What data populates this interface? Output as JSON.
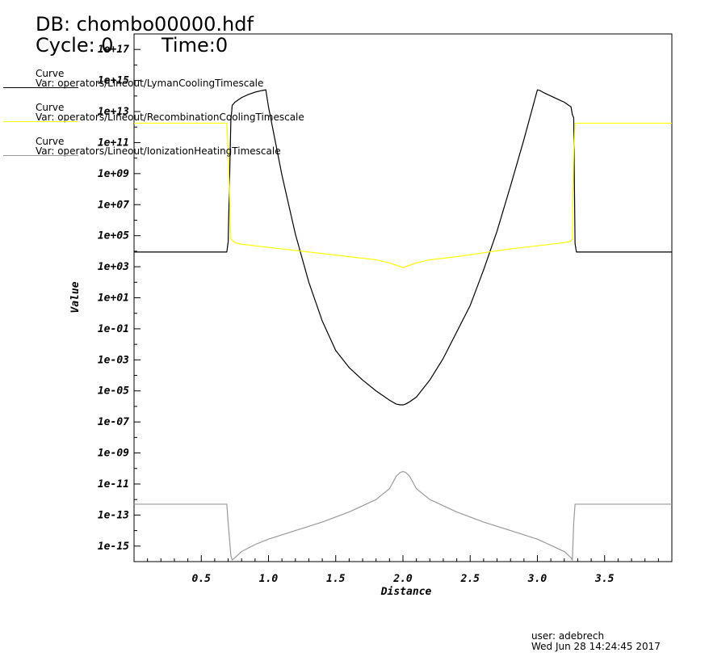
{
  "header": {
    "db_line": "DB: chombo00000.hdf",
    "cycle_line": "Cycle: 0",
    "time_line": "Time:0"
  },
  "legend": [
    {
      "label": "Curve",
      "var": "Var: operators/Lineout/LymanCoolingTimescale",
      "color": "#000000"
    },
    {
      "label": "Curve",
      "var": "Var: operators/Lineout/RecombinationCoolingTimescale",
      "color": "#ffff00"
    },
    {
      "label": "Curve",
      "var": "Var: operators/Lineout/IonizationHeatingTimescale",
      "color": "#999999"
    }
  ],
  "footer": {
    "user": "user: adebrech",
    "date": "Wed Jun 28 14:24:45 2017"
  },
  "chart_data": {
    "type": "line",
    "xlabel": "Distance",
    "ylabel": "Value",
    "xlim": [
      0,
      4.0
    ],
    "ylim_log10": [
      -16,
      18
    ],
    "yscale": "log",
    "grid": false,
    "x_ticks": [
      {
        "value": 0.5,
        "label": "0.5"
      },
      {
        "value": 1.0,
        "label": "1.0"
      },
      {
        "value": 1.5,
        "label": "1.5"
      },
      {
        "value": 2.0,
        "label": "2.0"
      },
      {
        "value": 2.5,
        "label": "2.5"
      },
      {
        "value": 3.0,
        "label": "3.0"
      },
      {
        "value": 3.5,
        "label": "3.5"
      }
    ],
    "y_ticks": [
      {
        "exp": 17,
        "label": "1e+17"
      },
      {
        "exp": 15,
        "label": "1e+15"
      },
      {
        "exp": 13,
        "label": "1e+13"
      },
      {
        "exp": 11,
        "label": "1e+11"
      },
      {
        "exp": 9,
        "label": "1e+09"
      },
      {
        "exp": 7,
        "label": "1e+07"
      },
      {
        "exp": 5,
        "label": "1e+05"
      },
      {
        "exp": 3,
        "label": "1e+03"
      },
      {
        "exp": 1,
        "label": "1e+01"
      },
      {
        "exp": -1,
        "label": "1e-01"
      },
      {
        "exp": -3,
        "label": "1e-03"
      },
      {
        "exp": -5,
        "label": "1e-05"
      },
      {
        "exp": -7,
        "label": "1e-07"
      },
      {
        "exp": -9,
        "label": "1e-09"
      },
      {
        "exp": -11,
        "label": "1e-11"
      },
      {
        "exp": -13,
        "label": "1e-13"
      },
      {
        "exp": -15,
        "label": "1e-15"
      }
    ],
    "series": [
      {
        "color": "#000000",
        "x": [
          0.0,
          0.69,
          0.7,
          0.72,
          0.73,
          0.75,
          0.8,
          0.85,
          0.9,
          0.95,
          0.98,
          1.0,
          1.1,
          1.2,
          1.3,
          1.4,
          1.5,
          1.6,
          1.7,
          1.8,
          1.9,
          1.95,
          1.98,
          2.0,
          2.02,
          2.05,
          2.1,
          2.2,
          2.3,
          2.4,
          2.5,
          2.6,
          2.7,
          2.8,
          2.9,
          3.0,
          3.02,
          3.05,
          3.1,
          3.15,
          3.2,
          3.25,
          3.26,
          3.27,
          3.28,
          3.29,
          3.3,
          4.0
        ],
        "log10_y": [
          3.95,
          3.95,
          4.6,
          12.4,
          13.4,
          13.6,
          13.9,
          14.1,
          14.25,
          14.35,
          14.4,
          13.3,
          8.9,
          5.1,
          2.0,
          -0.5,
          -2.4,
          -3.5,
          -4.3,
          -5.0,
          -5.6,
          -5.85,
          -5.9,
          -5.9,
          -5.85,
          -5.7,
          -5.4,
          -4.3,
          -2.9,
          -1.2,
          0.5,
          2.8,
          5.3,
          8.2,
          11.2,
          14.4,
          14.35,
          14.2,
          14.0,
          13.8,
          13.6,
          13.3,
          12.8,
          12.6,
          4.5,
          3.95,
          3.95,
          3.95
        ]
      },
      {
        "color": "#ffff00",
        "x": [
          0.0,
          0.69,
          0.7,
          0.72,
          0.75,
          0.8,
          1.0,
          1.2,
          1.4,
          1.6,
          1.8,
          1.9,
          1.95,
          2.0,
          2.05,
          2.1,
          2.2,
          2.4,
          2.6,
          2.8,
          3.0,
          3.2,
          3.25,
          3.26,
          3.27,
          3.28,
          3.3,
          4.0
        ],
        "log10_y": [
          12.25,
          12.25,
          10.5,
          4.8,
          4.55,
          4.45,
          4.25,
          4.05,
          3.85,
          3.65,
          3.45,
          3.25,
          3.1,
          2.95,
          3.1,
          3.25,
          3.45,
          3.65,
          3.9,
          4.15,
          4.35,
          4.55,
          4.65,
          4.8,
          10.5,
          12.25,
          12.25,
          12.25
        ]
      },
      {
        "color": "#999999",
        "x": [
          0.0,
          0.69,
          0.7,
          0.72,
          0.73,
          0.75,
          0.8,
          0.9,
          1.0,
          1.2,
          1.4,
          1.6,
          1.8,
          1.9,
          1.95,
          1.98,
          2.0,
          2.02,
          2.05,
          2.1,
          2.2,
          2.4,
          2.6,
          2.8,
          3.0,
          3.2,
          3.25,
          3.26,
          3.27,
          3.28,
          3.3,
          4.0
        ],
        "log10_y": [
          -12.3,
          -12.3,
          -13.5,
          -15.6,
          -15.9,
          -15.75,
          -15.35,
          -14.9,
          -14.55,
          -14.0,
          -13.45,
          -12.8,
          -12.0,
          -11.3,
          -10.5,
          -10.25,
          -10.2,
          -10.25,
          -10.5,
          -11.3,
          -12.0,
          -12.8,
          -13.45,
          -14.0,
          -14.55,
          -15.35,
          -15.75,
          -15.9,
          -13.5,
          -12.3,
          -12.3,
          -12.3
        ]
      }
    ]
  }
}
